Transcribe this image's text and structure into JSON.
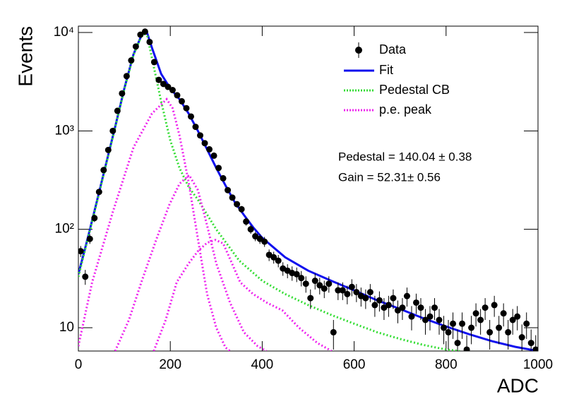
{
  "chart_data": {
    "type": "scatter",
    "xlabel": "ADC",
    "ylabel": "Events",
    "log_y": true,
    "xlim": [
      0,
      1000
    ],
    "ylim": [
      5.8,
      11600
    ],
    "xticks": [
      0,
      200,
      400,
      600,
      800,
      1000
    ],
    "yticks": [
      10,
      {
        "value": 100,
        "label": "10²"
      },
      {
        "value": 1000,
        "label": "10³"
      },
      {
        "value": 10000,
        "label": "10⁴"
      }
    ],
    "annotations": [
      "Pedestal = 140.04 ± 0.38",
      "Gain = 52.31± 0.56"
    ],
    "data": {
      "name": "Data",
      "color": "#000000",
      "x": [
        5,
        15,
        25,
        35,
        45,
        55,
        65,
        75,
        85,
        95,
        105,
        115,
        125,
        135,
        145,
        155,
        165,
        175,
        185,
        195,
        205,
        215,
        225,
        235,
        245,
        255,
        265,
        275,
        285,
        295,
        305,
        315,
        325,
        335,
        345,
        355,
        365,
        375,
        385,
        395,
        405,
        415,
        425,
        435,
        445,
        455,
        465,
        475,
        485,
        495,
        505,
        515,
        525,
        535,
        545,
        555,
        565,
        575,
        585,
        595,
        605,
        615,
        625,
        635,
        645,
        655,
        665,
        675,
        685,
        695,
        705,
        715,
        725,
        735,
        745,
        755,
        765,
        775,
        785,
        795,
        805,
        815,
        825,
        835,
        845,
        855,
        865,
        875,
        885,
        895,
        905,
        915,
        925,
        935,
        945,
        955,
        965,
        975,
        985,
        995
      ],
      "values": [
        60,
        33,
        80,
        130,
        240,
        400,
        640,
        1000,
        1600,
        2400,
        3600,
        5200,
        7200,
        9500,
        10200,
        8000,
        5000,
        3300,
        3000,
        2800,
        2600,
        2300,
        2000,
        1700,
        1400,
        1100,
        900,
        750,
        650,
        560,
        420,
        330,
        250,
        210,
        180,
        160,
        120,
        100,
        85,
        80,
        75,
        55,
        52,
        48,
        40,
        38,
        36,
        35,
        32,
        28,
        20,
        30,
        27,
        25,
        28,
        9,
        24,
        24,
        22,
        26,
        23,
        21,
        20,
        23,
        17,
        19,
        16,
        17,
        20,
        15,
        16,
        21,
        13,
        18,
        16,
        12,
        13,
        16,
        12,
        10,
        9,
        11,
        7,
        11,
        6,
        10,
        14,
        12,
        16,
        9,
        17,
        10,
        14,
        9,
        12,
        13,
        8,
        11,
        7,
        6
      ],
      "errors": [
        7.7,
        5.7,
        8.9,
        11.4,
        15.5,
        20,
        25.3,
        31.6,
        40,
        49,
        60,
        72,
        85,
        97,
        101,
        89,
        71,
        57,
        55,
        53,
        51,
        48,
        45,
        41,
        37,
        33,
        30,
        27,
        25,
        24,
        20.5,
        18.2,
        15.8,
        14.5,
        13.4,
        12.6,
        11,
        10,
        9.2,
        8.9,
        8.7,
        7.4,
        7.2,
        6.9,
        6.3,
        6.2,
        6,
        5.9,
        5.7,
        5.3,
        4.5,
        5.5,
        5.2,
        5,
        5.3,
        3,
        4.9,
        4.9,
        4.7,
        5.1,
        4.8,
        4.6,
        4.5,
        4.8,
        4.1,
        4.4,
        4,
        4.1,
        4.5,
        3.9,
        4,
        4.6,
        3.6,
        4.2,
        4,
        3.5,
        3.6,
        4,
        3.5,
        3.2,
        3,
        3.3,
        2.6,
        3.3,
        2.4,
        3.2,
        3.7,
        3.5,
        4,
        3,
        4.1,
        3.2,
        3.7,
        3,
        3.5,
        3.6,
        2.8,
        3.3,
        2.6,
        2.4
      ]
    },
    "curves": [
      {
        "name": "Fit",
        "color": "#1010ee",
        "style": "solid",
        "x": [
          0,
          20,
          40,
          60,
          80,
          100,
          120,
          140,
          150,
          160,
          180,
          200,
          220,
          240,
          260,
          280,
          300,
          320,
          340,
          360,
          380,
          400,
          450,
          500,
          550,
          600,
          650,
          700,
          750,
          800,
          850,
          900,
          950,
          1000
        ],
        "values": [
          35,
          80,
          190,
          460,
          1100,
          2700,
          6000,
          10000,
          9800,
          7000,
          3800,
          2700,
          2100,
          1500,
          1000,
          650,
          420,
          280,
          190,
          140,
          105,
          82,
          52,
          38,
          30,
          24,
          19,
          15.5,
          12.5,
          10.3,
          8.6,
          7.3,
          6.4,
          5.8
        ]
      },
      {
        "name": "Pedestal CB",
        "color": "#33dd33",
        "style": "dotted",
        "x": [
          0,
          20,
          40,
          60,
          80,
          100,
          120,
          140,
          150,
          160,
          180,
          200,
          220,
          240,
          260,
          300,
          350,
          400,
          450,
          500,
          550,
          600,
          650,
          700,
          750,
          800,
          830
        ],
        "values": [
          33,
          78,
          185,
          450,
          1080,
          2650,
          5900,
          9900,
          9200,
          5500,
          2000,
          800,
          420,
          270,
          200,
          100,
          48,
          30,
          22,
          17,
          13.5,
          11,
          9,
          7.7,
          6.7,
          6.0,
          5.8
        ]
      },
      {
        "name": "p.e. peak",
        "color": "#ee22ee",
        "style": "dotted",
        "components": [
          {
            "x": [
              0,
              30,
              75,
              120,
              160,
              192,
              205,
              220,
              240,
              260,
              280,
              300,
              320,
              330
            ],
            "values": [
              6.5,
              29,
              150,
              680,
              1500,
              2100,
              1700,
              900,
              300,
              80,
              22,
              10,
              6.3,
              5.8
            ]
          },
          {
            "x": [
              80,
              110,
              137,
              170,
              198,
              220,
              241,
              260,
              280,
              300,
              330,
              360,
              390,
              409
            ],
            "values": [
              5.8,
              12,
              29,
              80,
              178,
              290,
              355,
              250,
              110,
              45,
              18,
              9,
              6.5,
              5.8
            ]
          },
          {
            "x": [
              164,
              190,
              214,
              240,
              260,
              280,
              298,
              315,
              330,
              352,
              380,
              410,
              444,
              480,
              520,
              551
            ],
            "values": [
              5.8,
              12,
              29,
              45,
              60,
              73,
              78,
              72,
              50,
              29,
              22,
              18,
              15,
              10,
              7,
              5.8
            ]
          }
        ]
      }
    ]
  }
}
